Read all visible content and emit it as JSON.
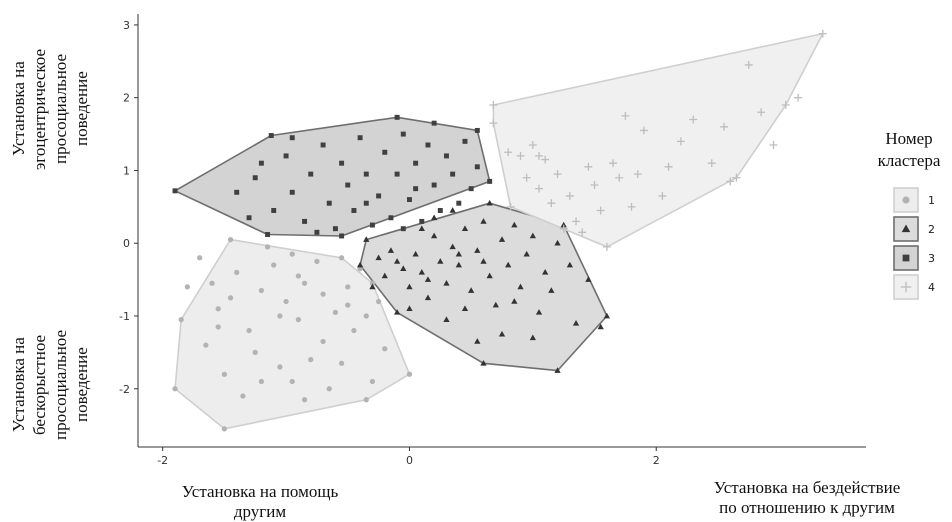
{
  "chart_data": {
    "type": "scatter",
    "xlabel_left": "Установка на помощь\nдругим",
    "xlabel_right": "Установка на бездействие\nпо отношению к другим",
    "ylabel_top": "Установка на\nэгоцентрическое\nпросоциальное\nповедение",
    "ylabel_bottom": "Установка на\nбескорыстное\nпросоциальное\nповедение",
    "xlim": [
      -2.2,
      3.7
    ],
    "ylim": [
      -2.8,
      3.15
    ],
    "x_ticks": [
      -2,
      0,
      2
    ],
    "y_ticks": [
      -2,
      -1,
      0,
      1,
      2,
      3
    ],
    "grid": false,
    "legend": {
      "title": "Номер\nкластера",
      "position": "right",
      "items": [
        {
          "label": "1",
          "shape": "circle"
        },
        {
          "label": "2",
          "shape": "triangle"
        },
        {
          "label": "3",
          "shape": "square"
        },
        {
          "label": "4",
          "shape": "plus"
        }
      ]
    },
    "clusters": [
      {
        "name": "1",
        "shape": "circle",
        "color": "#b3b3b3",
        "fill": "#ededed",
        "stroke": "#cfcfcf",
        "hull": [
          [
            -1.9,
            -2.0
          ],
          [
            -1.5,
            -2.55
          ],
          [
            -0.35,
            -2.15
          ],
          [
            0.0,
            -1.8
          ],
          [
            -0.3,
            -0.55
          ],
          [
            -0.55,
            -0.2
          ],
          [
            -1.45,
            0.05
          ],
          [
            -1.85,
            -1.05
          ]
        ],
        "points": [
          [
            -1.9,
            -2.0
          ],
          [
            -1.5,
            -2.55
          ],
          [
            -0.35,
            -2.15
          ],
          [
            0.0,
            -1.8
          ],
          [
            -0.3,
            -0.55
          ],
          [
            -0.55,
            -0.2
          ],
          [
            -1.45,
            0.05
          ],
          [
            -1.85,
            -1.05
          ],
          [
            -1.7,
            -0.2
          ],
          [
            -1.6,
            -0.55
          ],
          [
            -1.55,
            -0.9
          ],
          [
            -1.4,
            -0.4
          ],
          [
            -1.3,
            -1.2
          ],
          [
            -1.2,
            -0.65
          ],
          [
            -1.1,
            -0.3
          ],
          [
            -1.0,
            -0.8
          ],
          [
            -0.9,
            -1.05
          ],
          [
            -0.85,
            -0.55
          ],
          [
            -0.75,
            -0.25
          ],
          [
            -0.7,
            -1.35
          ],
          [
            -0.6,
            -0.95
          ],
          [
            -0.5,
            -0.6
          ],
          [
            -0.45,
            -1.2
          ],
          [
            -0.4,
            -0.35
          ],
          [
            -1.25,
            -1.5
          ],
          [
            -1.05,
            -1.7
          ],
          [
            -0.95,
            -1.9
          ],
          [
            -0.8,
            -1.6
          ],
          [
            -0.65,
            -2.0
          ],
          [
            -1.5,
            -1.8
          ],
          [
            -1.35,
            -2.1
          ],
          [
            -1.65,
            -1.4
          ],
          [
            -0.2,
            -1.45
          ],
          [
            -0.35,
            -1.0
          ],
          [
            -1.45,
            -0.75
          ],
          [
            -0.95,
            -0.15
          ],
          [
            -1.15,
            -0.05
          ],
          [
            -0.55,
            -1.65
          ],
          [
            -1.8,
            -0.6
          ],
          [
            -0.25,
            -0.8
          ],
          [
            -1.05,
            -1.0
          ],
          [
            -0.9,
            -0.45
          ],
          [
            -0.7,
            -0.7
          ],
          [
            -0.5,
            -0.85
          ],
          [
            -1.55,
            -1.15
          ],
          [
            -0.3,
            -1.9
          ],
          [
            -1.2,
            -1.9
          ],
          [
            -0.85,
            -2.15
          ]
        ]
      },
      {
        "name": "2",
        "shape": "triangle",
        "color": "#333333",
        "fill": "#dcdcdc",
        "stroke": "#6e6e6e",
        "hull": [
          [
            -0.4,
            -0.3
          ],
          [
            -0.35,
            0.05
          ],
          [
            0.65,
            0.55
          ],
          [
            1.25,
            0.25
          ],
          [
            1.6,
            -1.0
          ],
          [
            1.2,
            -1.75
          ],
          [
            0.6,
            -1.65
          ],
          [
            -0.1,
            -0.95
          ]
        ],
        "points": [
          [
            -0.4,
            -0.3
          ],
          [
            -0.35,
            0.05
          ],
          [
            0.65,
            0.55
          ],
          [
            1.25,
            0.25
          ],
          [
            1.6,
            -1.0
          ],
          [
            1.2,
            -1.75
          ],
          [
            0.6,
            -1.65
          ],
          [
            -0.1,
            -0.95
          ],
          [
            -0.25,
            -0.2
          ],
          [
            -0.2,
            -0.45
          ],
          [
            -0.15,
            -0.1
          ],
          [
            -0.05,
            -0.35
          ],
          [
            0.0,
            -0.6
          ],
          [
            0.05,
            -0.15
          ],
          [
            0.1,
            -0.4
          ],
          [
            0.15,
            -0.75
          ],
          [
            0.2,
            0.1
          ],
          [
            0.25,
            -0.25
          ],
          [
            0.3,
            -0.55
          ],
          [
            0.35,
            -0.05
          ],
          [
            0.4,
            -0.3
          ],
          [
            0.45,
            0.2
          ],
          [
            0.5,
            -0.65
          ],
          [
            0.55,
            -0.1
          ],
          [
            0.6,
            0.3
          ],
          [
            0.65,
            -0.45
          ],
          [
            0.7,
            -0.85
          ],
          [
            0.75,
            0.05
          ],
          [
            0.8,
            -0.3
          ],
          [
            0.85,
            0.25
          ],
          [
            0.9,
            -0.6
          ],
          [
            0.95,
            -0.15
          ],
          [
            1.0,
            0.1
          ],
          [
            1.05,
            -0.95
          ],
          [
            1.1,
            -0.4
          ],
          [
            1.15,
            -0.65
          ],
          [
            1.2,
            0.0
          ],
          [
            1.3,
            -0.3
          ],
          [
            1.35,
            -1.1
          ],
          [
            1.45,
            -0.5
          ],
          [
            1.55,
            -1.15
          ],
          [
            0.3,
            -1.05
          ],
          [
            0.45,
            -0.9
          ],
          [
            0.2,
            0.35
          ],
          [
            0.1,
            0.2
          ],
          [
            -0.3,
            -0.6
          ],
          [
            0.0,
            -0.9
          ],
          [
            0.35,
            0.45
          ],
          [
            0.75,
            -1.25
          ],
          [
            1.0,
            -1.3
          ],
          [
            0.55,
            -1.35
          ],
          [
            0.4,
            -0.15
          ],
          [
            0.6,
            -0.25
          ],
          [
            0.85,
            -0.8
          ],
          [
            -0.1,
            -0.25
          ],
          [
            0.15,
            -0.5
          ]
        ]
      },
      {
        "name": "3",
        "shape": "square",
        "color": "#404040",
        "fill": "#d3d3d3",
        "stroke": "#6e6e6e",
        "hull": [
          [
            -1.9,
            0.72
          ],
          [
            -1.12,
            1.48
          ],
          [
            -0.1,
            1.73
          ],
          [
            0.55,
            1.55
          ],
          [
            0.65,
            0.85
          ],
          [
            -0.55,
            0.1
          ],
          [
            -1.15,
            0.12
          ]
        ],
        "points": [
          [
            -1.9,
            0.72
          ],
          [
            -1.12,
            1.48
          ],
          [
            -0.1,
            1.73
          ],
          [
            0.55,
            1.55
          ],
          [
            0.65,
            0.85
          ],
          [
            -0.55,
            0.1
          ],
          [
            -1.15,
            0.12
          ],
          [
            -1.4,
            0.7
          ],
          [
            -1.25,
            0.9
          ],
          [
            -1.1,
            0.45
          ],
          [
            -1.0,
            1.2
          ],
          [
            -0.95,
            0.7
          ],
          [
            -0.85,
            0.3
          ],
          [
            -0.8,
            0.95
          ],
          [
            -0.7,
            1.35
          ],
          [
            -0.65,
            0.55
          ],
          [
            -0.6,
            0.2
          ],
          [
            -0.55,
            1.1
          ],
          [
            -0.5,
            0.8
          ],
          [
            -0.45,
            0.45
          ],
          [
            -0.4,
            1.45
          ],
          [
            -0.35,
            0.95
          ],
          [
            -0.3,
            0.25
          ],
          [
            -0.25,
            0.65
          ],
          [
            -0.2,
            1.25
          ],
          [
            -0.15,
            0.35
          ],
          [
            -0.1,
            0.95
          ],
          [
            -0.05,
            1.5
          ],
          [
            0.0,
            0.6
          ],
          [
            0.05,
            1.1
          ],
          [
            0.1,
            0.3
          ],
          [
            0.15,
            1.35
          ],
          [
            0.2,
            0.8
          ],
          [
            0.25,
            0.45
          ],
          [
            0.3,
            1.2
          ],
          [
            0.35,
            0.95
          ],
          [
            0.4,
            0.55
          ],
          [
            0.45,
            1.4
          ],
          [
            0.5,
            0.75
          ],
          [
            -1.3,
            0.35
          ],
          [
            -1.2,
            1.1
          ],
          [
            -0.75,
            0.15
          ],
          [
            0.55,
            1.05
          ],
          [
            -0.95,
            1.45
          ],
          [
            0.2,
            1.65
          ],
          [
            -0.05,
            0.2
          ],
          [
            -0.35,
            0.55
          ],
          [
            0.05,
            0.75
          ]
        ]
      },
      {
        "name": "4",
        "shape": "plus",
        "color": "#bdbdbd",
        "fill": "#f0f0f0",
        "stroke": "#cfcfcf",
        "hull": [
          [
            0.68,
            1.9
          ],
          [
            3.35,
            2.88
          ],
          [
            3.05,
            1.9
          ],
          [
            2.65,
            0.9
          ],
          [
            1.6,
            -0.05
          ],
          [
            0.82,
            0.5
          ],
          [
            0.68,
            1.65
          ]
        ],
        "points": [
          [
            0.68,
            1.9
          ],
          [
            3.35,
            2.88
          ],
          [
            3.05,
            1.9
          ],
          [
            2.65,
            0.9
          ],
          [
            1.6,
            -0.05
          ],
          [
            0.82,
            0.5
          ],
          [
            0.68,
            1.65
          ],
          [
            0.8,
            1.25
          ],
          [
            0.9,
            1.2
          ],
          [
            1.0,
            1.35
          ],
          [
            1.05,
            0.75
          ],
          [
            1.1,
            1.15
          ],
          [
            1.15,
            0.55
          ],
          [
            1.2,
            0.95
          ],
          [
            1.3,
            0.65
          ],
          [
            1.35,
            0.3
          ],
          [
            1.45,
            1.05
          ],
          [
            1.5,
            0.8
          ],
          [
            1.55,
            0.45
          ],
          [
            1.65,
            1.1
          ],
          [
            1.7,
            0.9
          ],
          [
            1.8,
            0.5
          ],
          [
            1.9,
            1.55
          ],
          [
            2.05,
            0.65
          ],
          [
            2.1,
            1.05
          ],
          [
            2.2,
            1.4
          ],
          [
            2.3,
            1.7
          ],
          [
            2.45,
            1.1
          ],
          [
            2.55,
            1.6
          ],
          [
            2.6,
            0.85
          ],
          [
            2.75,
            2.45
          ],
          [
            2.85,
            1.8
          ],
          [
            2.95,
            1.35
          ],
          [
            3.15,
            2.0
          ],
          [
            1.25,
            0.2
          ],
          [
            1.4,
            0.15
          ],
          [
            1.75,
            1.75
          ],
          [
            0.95,
            0.9
          ],
          [
            1.05,
            1.2
          ],
          [
            1.85,
            0.95
          ]
        ]
      }
    ]
  }
}
